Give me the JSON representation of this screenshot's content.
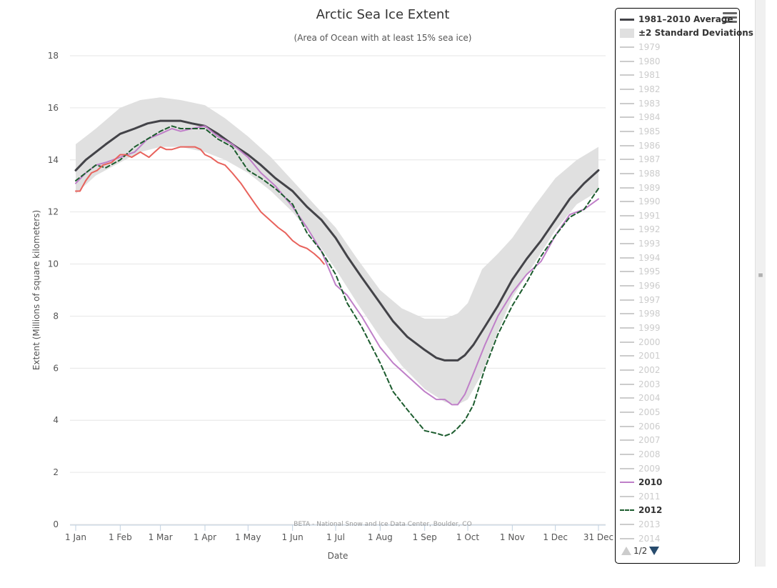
{
  "chart_data": {
    "type": "line",
    "title": "Arctic Sea Ice Extent",
    "subtitle": "(Area of Ocean with at least 15% sea ice)",
    "ylabel": "Extent (Millions of square kilometers)",
    "xlabel": "Date",
    "credit": "BETA - National Snow and Ice Data Center, Boulder, CO",
    "ylim": [
      0,
      18
    ],
    "xlim": [
      1,
      365
    ],
    "grid": true,
    "legend_position": "right",
    "y_ticks": [
      0,
      2,
      4,
      6,
      8,
      10,
      12,
      14,
      16,
      18
    ],
    "x_ticks": [
      {
        "label": "1 Jan",
        "day": 1
      },
      {
        "label": "1 Feb",
        "day": 32
      },
      {
        "label": "1 Mar",
        "day": 60
      },
      {
        "label": "1 Apr",
        "day": 91
      },
      {
        "label": "1 May",
        "day": 121
      },
      {
        "label": "1 Jun",
        "day": 152
      },
      {
        "label": "1 Jul",
        "day": 182
      },
      {
        "label": "1 Aug",
        "day": 213
      },
      {
        "label": "1 Sep",
        "day": 244
      },
      {
        "label": "1 Oct",
        "day": 274
      },
      {
        "label": "1 Nov",
        "day": 305
      },
      {
        "label": "1 Dec",
        "day": 335
      },
      {
        "label": "31 Dec",
        "day": 365
      }
    ],
    "band": {
      "name": "±2 Standard Deviations",
      "color": "#e0e0e0",
      "x": [
        1,
        15,
        32,
        46,
        60,
        74,
        91,
        105,
        121,
        137,
        152,
        167,
        182,
        197,
        213,
        228,
        244,
        258,
        267,
        274,
        284,
        295,
        305,
        320,
        335,
        350,
        365
      ],
      "low": [
        12.7,
        13.4,
        13.9,
        14.3,
        14.5,
        14.5,
        14.3,
        14.0,
        13.5,
        12.8,
        12.0,
        11.0,
        9.8,
        8.5,
        7.2,
        6.1,
        5.2,
        4.7,
        4.6,
        4.8,
        5.8,
        7.4,
        8.7,
        10.0,
        11.3,
        12.3,
        12.8
      ],
      "high": [
        14.6,
        15.2,
        16.0,
        16.3,
        16.4,
        16.3,
        16.1,
        15.6,
        14.9,
        14.1,
        13.2,
        12.3,
        11.4,
        10.2,
        9.0,
        8.3,
        7.9,
        7.9,
        8.1,
        8.5,
        9.8,
        10.4,
        11.0,
        12.2,
        13.3,
        14.0,
        14.5
      ]
    },
    "series": [
      {
        "name": "1981–2010 Average",
        "color": "#434348",
        "dash": "solid",
        "width": 3,
        "x": [
          1,
          8,
          15,
          22,
          32,
          42,
          51,
          60,
          68,
          74,
          82,
          91,
          100,
          110,
          121,
          130,
          140,
          152,
          162,
          172,
          182,
          190,
          200,
          213,
          222,
          232,
          244,
          252,
          258,
          263,
          267,
          272,
          278,
          286,
          295,
          305,
          315,
          325,
          335,
          345,
          355,
          365
        ],
        "y": [
          13.6,
          14.0,
          14.3,
          14.6,
          15.0,
          15.2,
          15.4,
          15.5,
          15.5,
          15.5,
          15.4,
          15.3,
          15.0,
          14.6,
          14.2,
          13.8,
          13.3,
          12.8,
          12.2,
          11.7,
          11.0,
          10.3,
          9.5,
          8.5,
          7.8,
          7.2,
          6.7,
          6.4,
          6.3,
          6.3,
          6.3,
          6.5,
          6.9,
          7.6,
          8.4,
          9.4,
          10.2,
          10.9,
          11.7,
          12.5,
          13.1,
          13.6
        ]
      },
      {
        "name": "2010",
        "color": "#bf7fc8",
        "dash": "solid",
        "width": 2,
        "x": [
          1,
          8,
          15,
          22,
          32,
          42,
          51,
          60,
          68,
          74,
          82,
          91,
          100,
          110,
          121,
          130,
          140,
          152,
          162,
          172,
          182,
          190,
          200,
          213,
          222,
          232,
          244,
          252,
          258,
          263,
          267,
          272,
          278,
          286,
          295,
          305,
          315,
          325,
          335,
          345,
          355,
          365
        ],
        "y": [
          13.1,
          13.5,
          13.8,
          13.9,
          14.1,
          14.3,
          14.8,
          15.0,
          15.2,
          15.1,
          15.2,
          15.3,
          14.9,
          14.6,
          14.1,
          13.5,
          13.0,
          12.2,
          11.4,
          10.5,
          9.2,
          8.8,
          8.0,
          6.8,
          6.2,
          5.7,
          5.1,
          4.8,
          4.8,
          4.6,
          4.6,
          5.0,
          5.8,
          6.9,
          8.0,
          8.9,
          9.6,
          10.1,
          11.1,
          11.9,
          12.1,
          12.5
        ]
      },
      {
        "name": "2012",
        "color": "#1c5c2e",
        "dash": "dashed",
        "width": 2,
        "x": [
          1,
          8,
          15,
          22,
          32,
          42,
          51,
          60,
          68,
          74,
          82,
          91,
          100,
          110,
          121,
          130,
          140,
          152,
          162,
          172,
          182,
          190,
          200,
          213,
          222,
          232,
          244,
          252,
          258,
          263,
          267,
          272,
          278,
          286,
          295,
          305,
          315,
          325,
          335,
          345,
          355,
          365
        ],
        "y": [
          13.2,
          13.5,
          13.8,
          13.7,
          14.0,
          14.5,
          14.8,
          15.1,
          15.3,
          15.2,
          15.2,
          15.2,
          14.8,
          14.5,
          13.6,
          13.3,
          12.9,
          12.3,
          11.2,
          10.5,
          9.6,
          8.5,
          7.6,
          6.2,
          5.1,
          4.4,
          3.6,
          3.5,
          3.4,
          3.5,
          3.7,
          4.0,
          4.6,
          6.0,
          7.3,
          8.4,
          9.3,
          10.3,
          11.1,
          11.8,
          12.1,
          12.9
        ]
      },
      {
        "name": "",
        "color": "#e8625c",
        "dash": "solid",
        "width": 2,
        "x": [
          1,
          4,
          8,
          12,
          16,
          20,
          26,
          32,
          36,
          40,
          46,
          52,
          56,
          60,
          64,
          68,
          74,
          80,
          84,
          88,
          91,
          95,
          100,
          105,
          110,
          116,
          121,
          126,
          130,
          136,
          142,
          147,
          152,
          157,
          162,
          167,
          171,
          174
        ],
        "y": [
          12.8,
          12.8,
          13.2,
          13.5,
          13.6,
          13.8,
          13.9,
          14.2,
          14.2,
          14.1,
          14.3,
          14.1,
          14.3,
          14.5,
          14.4,
          14.4,
          14.5,
          14.5,
          14.5,
          14.4,
          14.2,
          14.1,
          13.9,
          13.8,
          13.5,
          13.1,
          12.7,
          12.3,
          12.0,
          11.7,
          11.4,
          11.2,
          10.9,
          10.7,
          10.6,
          10.4,
          10.2,
          10.0
        ]
      }
    ]
  },
  "legend": {
    "menu_icon": "hamburger-menu-icon",
    "average_label": "1981–2010 Average",
    "band_label": "±2 Standard Deviations",
    "years": [
      "1979",
      "1980",
      "1981",
      "1982",
      "1983",
      "1984",
      "1985",
      "1986",
      "1987",
      "1988",
      "1989",
      "1990",
      "1991",
      "1992",
      "1993",
      "1994",
      "1995",
      "1996",
      "1997",
      "1998",
      "1999",
      "2000",
      "2001",
      "2002",
      "2003",
      "2004",
      "2005",
      "2006",
      "2007",
      "2008",
      "2009",
      "2010",
      "2011",
      "2012",
      "2013",
      "2014"
    ],
    "visible_years": [
      "2010",
      "2012"
    ],
    "page_indicator": "1/2"
  }
}
